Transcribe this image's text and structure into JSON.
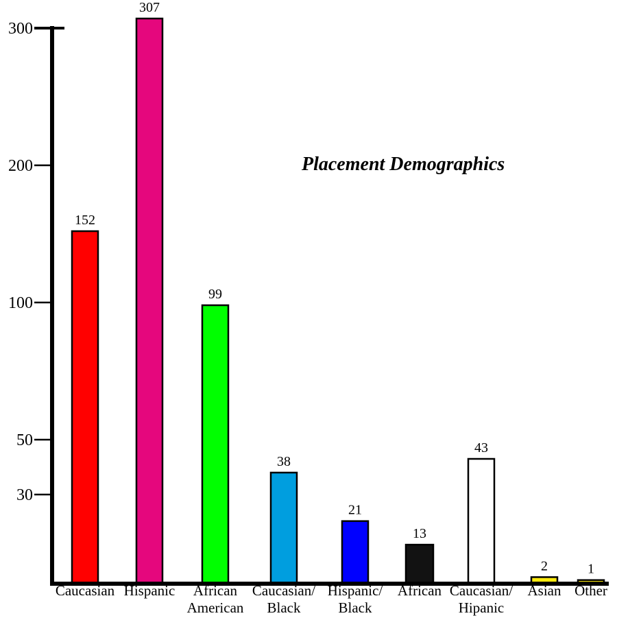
{
  "chart_data": {
    "type": "bar",
    "title": "Placement Demographics",
    "categories": [
      "Caucasian",
      "Hispanic",
      "African American",
      "Caucasian/ Black",
      "Hispanic/ Black",
      "African",
      "Caucasian/ Hipanic",
      "Asian",
      "Other"
    ],
    "category_lines": [
      [
        "Caucasian"
      ],
      [
        "Hispanic"
      ],
      [
        "African",
        "American"
      ],
      [
        "Caucasian/",
        "Black"
      ],
      [
        "Hispanic/",
        "Black"
      ],
      [
        "African"
      ],
      [
        "Caucasian/",
        "Hipanic"
      ],
      [
        "Asian"
      ],
      [
        "Other"
      ]
    ],
    "values": [
      152,
      307,
      99,
      38,
      21,
      13,
      43,
      2,
      1
    ],
    "value_labels": [
      "152",
      "307",
      "99",
      "38",
      "21",
      "13",
      "43",
      "2",
      "1"
    ],
    "colors": [
      "#ff0000",
      "#e5077d",
      "#00ff00",
      "#009edf",
      "#0000ff",
      "#121212",
      "#ffffff",
      "#ffeb0f",
      "#ffeb0f"
    ],
    "y_ticks": [
      30,
      50,
      100,
      200,
      300
    ],
    "y_tick_labels": [
      "30",
      "50",
      "100",
      "200",
      "300"
    ],
    "ylim": [
      0,
      300
    ],
    "y_scale": "non-linear (expanded below 50)",
    "grid": false,
    "xlabel": "",
    "ylabel": ""
  }
}
